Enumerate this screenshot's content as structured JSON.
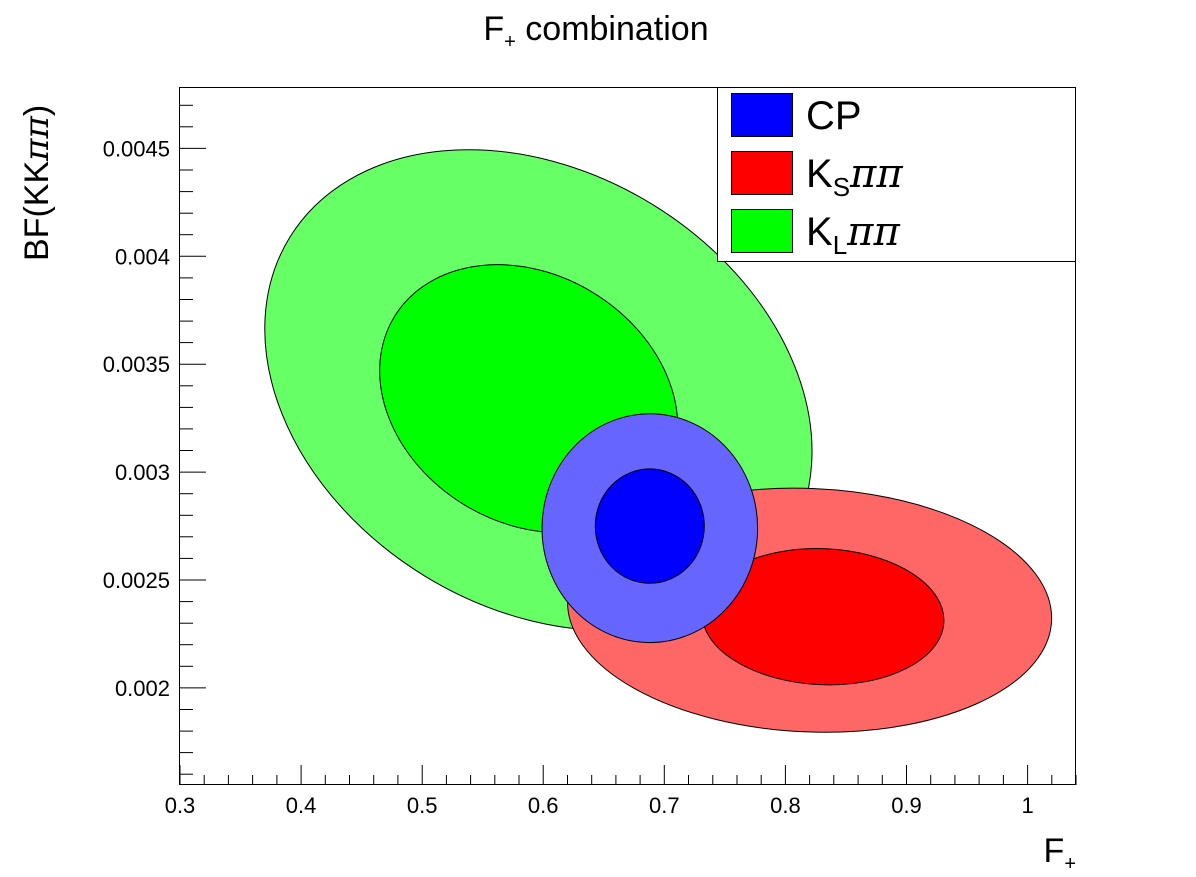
{
  "chart_data": {
    "type": "scatter",
    "title_main": "F",
    "title_sub": "+",
    "title_rest": " combination",
    "xlabel_main": "F",
    "xlabel_sub": "+",
    "ylabel_main": "BF(KK",
    "ylabel_greek": "ππ",
    "ylabel_close": ")",
    "xlim": [
      0.3,
      1.04
    ],
    "ylim": [
      0.00155,
      0.00478
    ],
    "x_ticks": [
      0.3,
      0.4,
      0.5,
      0.6,
      0.7,
      0.8,
      0.9,
      1.0
    ],
    "x_tick_labels": [
      "0.3",
      "0.4",
      "0.5",
      "0.6",
      "0.7",
      "0.8",
      "0.9",
      "1"
    ],
    "y_ticks": [
      0.002,
      0.0025,
      0.003,
      0.0035,
      0.004,
      0.0045
    ],
    "y_tick_labels": [
      "0.002",
      "0.0025",
      "0.003",
      "0.0035",
      "0.004",
      "0.0045"
    ],
    "grid": false,
    "legend_position": "top-right",
    "colors": {
      "CP_outer": "#6666ff",
      "CP_inner": "#0000ff",
      "KS_outer": "#ff6666",
      "KS_inner": "#ff0000",
      "KL_outer": "#66ff66",
      "KL_inner": "#00ff00"
    },
    "legend": [
      {
        "key": "CP",
        "main": "CP",
        "sub": "",
        "greek": "",
        "color": "#0000ff"
      },
      {
        "key": "KS",
        "main": "K",
        "sub": "S",
        "greek": "ππ",
        "color": "#ff0000"
      },
      {
        "key": "KL",
        "main": "K",
        "sub": "L",
        "greek": "ππ",
        "color": "#00ff00"
      }
    ],
    "series": [
      {
        "name": "KL",
        "layer": "outer",
        "color": "#66ff66",
        "center": [
          0.596,
          0.00338
        ],
        "x_halfwidth": 0.241,
        "y_halfwidth": 0.00101,
        "tilt_deg": 31.5
      },
      {
        "name": "KL",
        "layer": "inner",
        "color": "#00ff00",
        "center": [
          0.588,
          0.00334
        ],
        "x_halfwidth": 0.13,
        "y_halfwidth": 0.000575,
        "tilt_deg": 31.5
      },
      {
        "name": "KS",
        "layer": "outer",
        "color": "#ff6666",
        "center": [
          0.82,
          0.00236
        ],
        "x_halfwidth": 0.2,
        "y_halfwidth": 0.000564,
        "tilt_deg": 2.5
      },
      {
        "name": "KS",
        "layer": "inner",
        "color": "#ff0000",
        "center": [
          0.831,
          0.00233
        ],
        "x_halfwidth": 0.1,
        "y_halfwidth": 0.000315,
        "tilt_deg": 2.5
      },
      {
        "name": "CP",
        "layer": "outer",
        "color": "#6666ff",
        "center": [
          0.688,
          0.00274
        ],
        "x_halfwidth": 0.089,
        "y_halfwidth": 0.00053,
        "tilt_deg": 0
      },
      {
        "name": "CP",
        "layer": "inner",
        "color": "#0000ff",
        "center": [
          0.688,
          0.00275
        ],
        "x_halfwidth": 0.045,
        "y_halfwidth": 0.000265,
        "tilt_deg": 0
      }
    ]
  }
}
